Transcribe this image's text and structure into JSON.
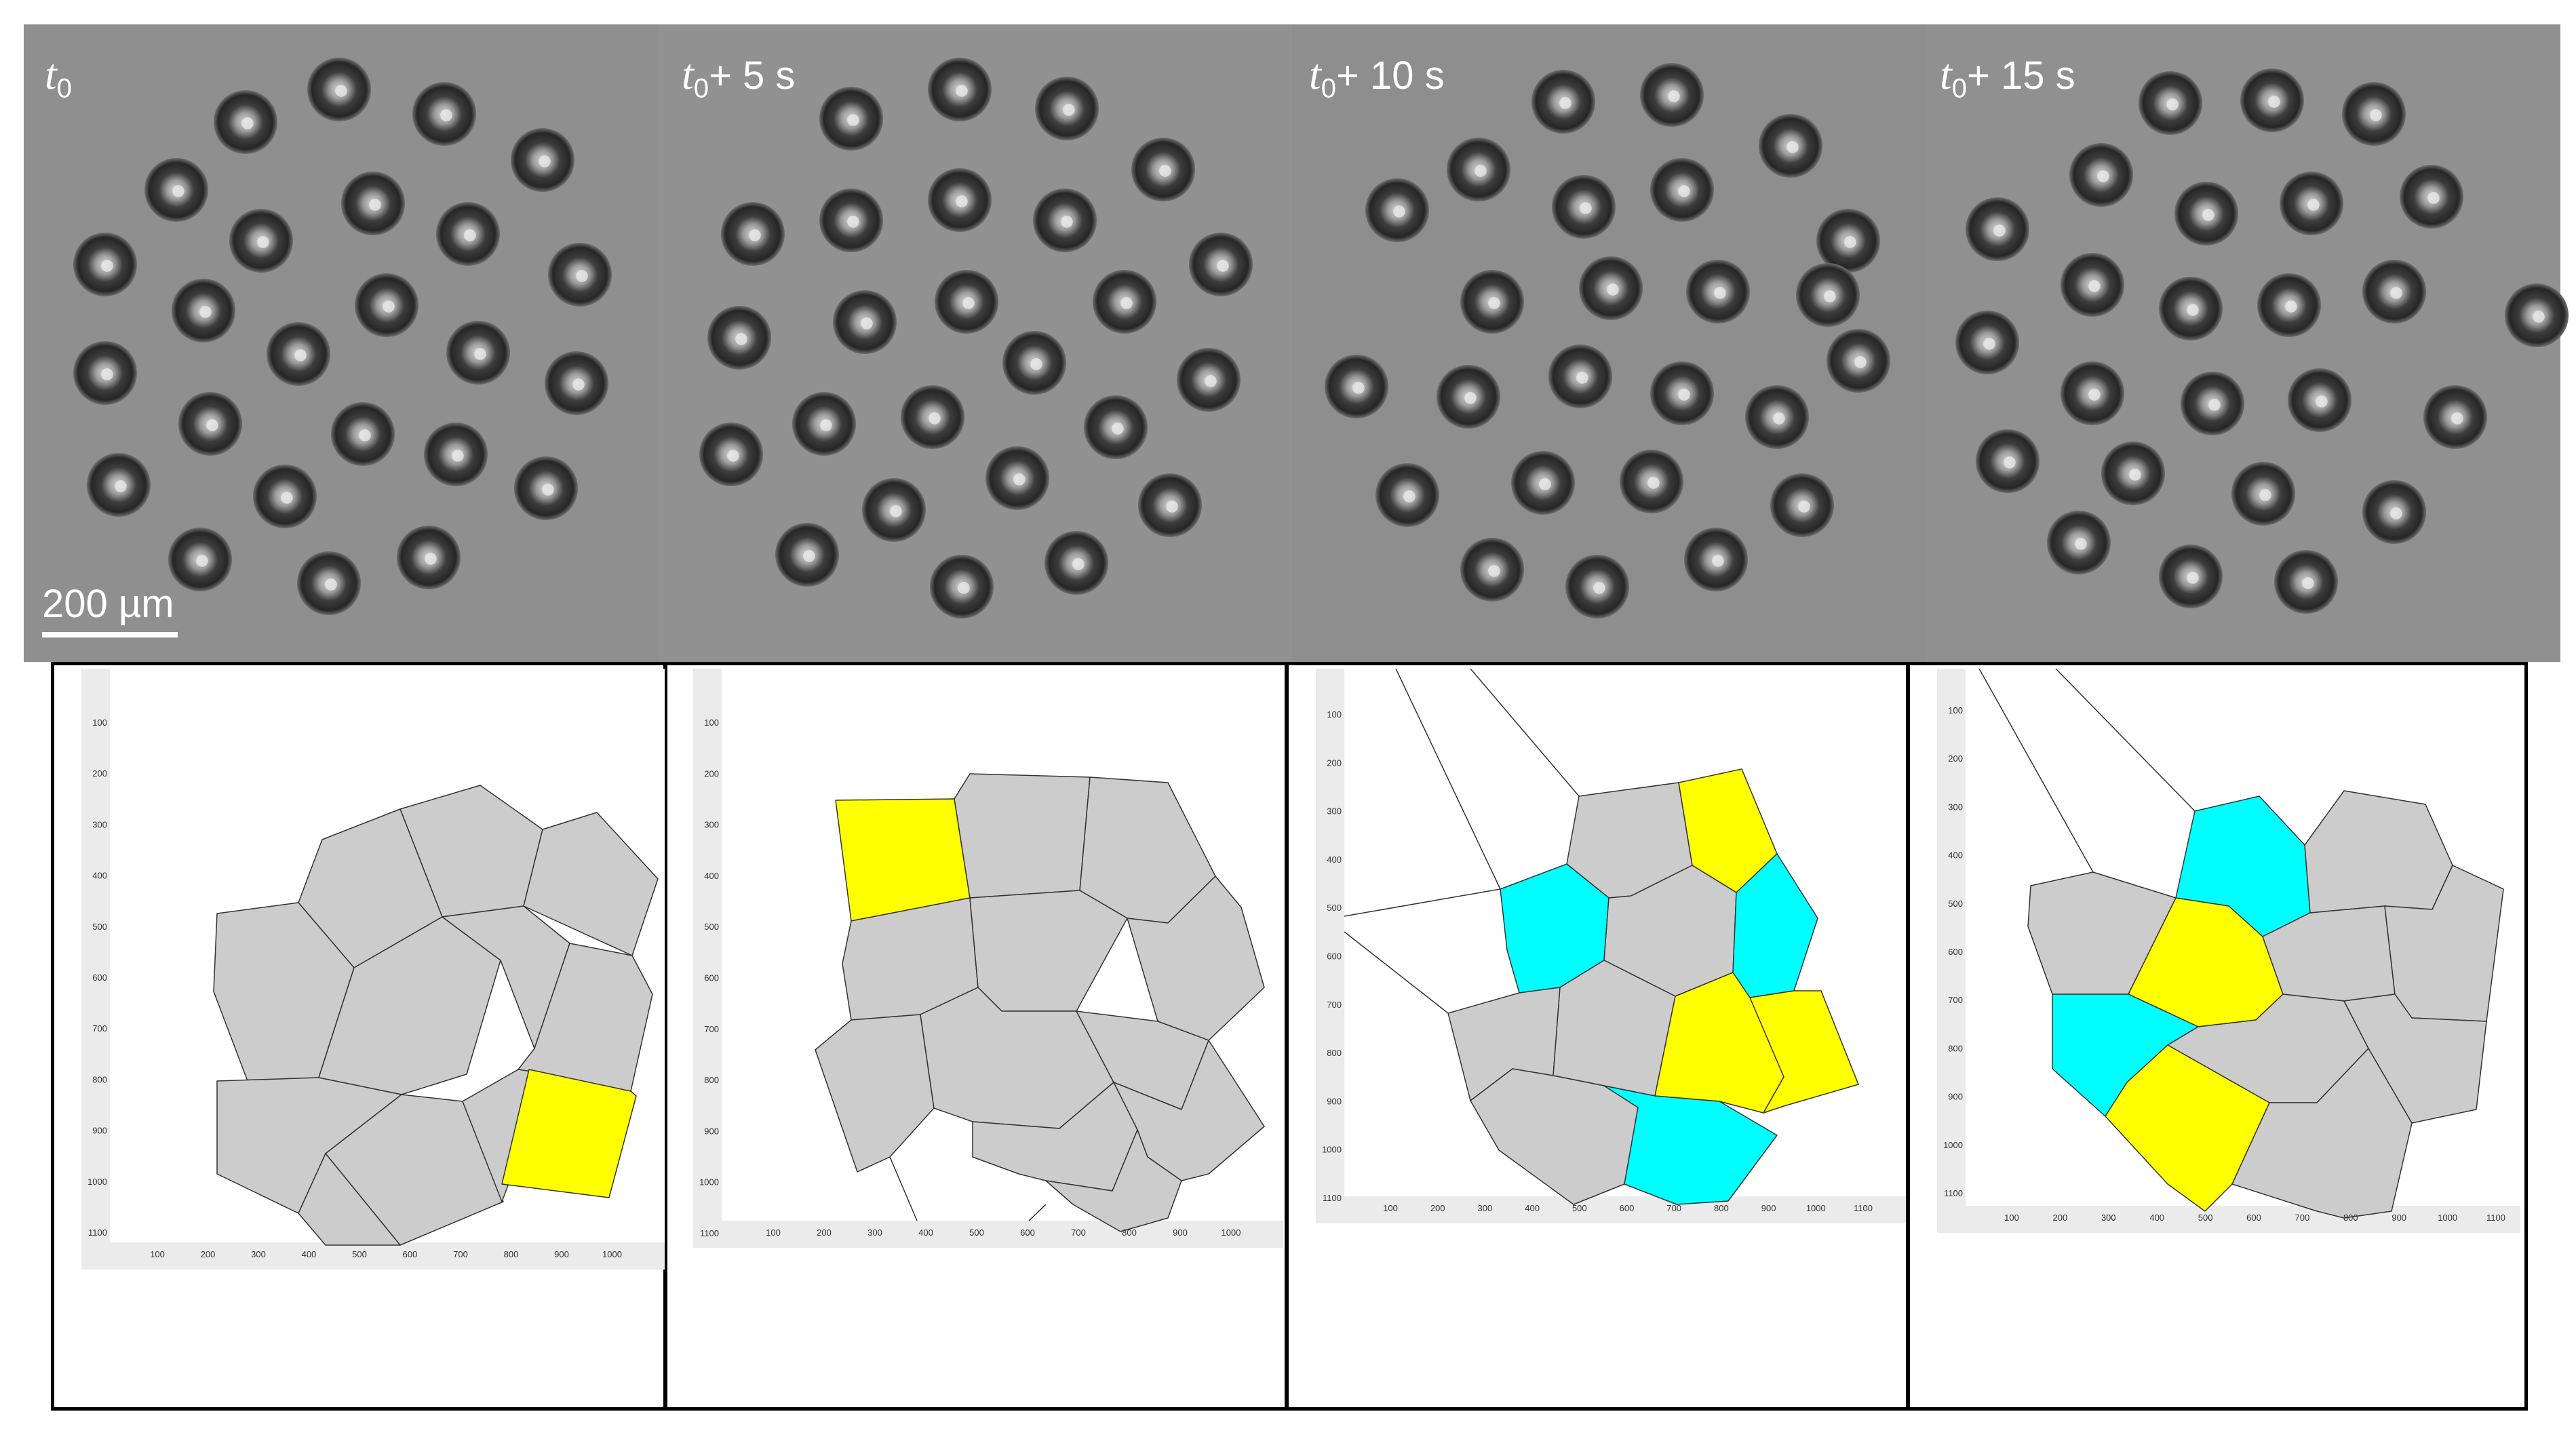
{
  "figure": {
    "time_labels": [
      {
        "var": "t",
        "sub": "0",
        "suffix": ""
      },
      {
        "var": "t",
        "sub": "0",
        "suffix": "+ 5 s"
      },
      {
        "var": "t",
        "sub": "0",
        "suffix": "+ 10 s"
      },
      {
        "var": "t",
        "sub": "0",
        "suffix": "+ 15 s"
      }
    ],
    "scale_bar_label": "200 µm",
    "axis_ticks_y": [
      "100",
      "200",
      "300",
      "400",
      "500",
      "600",
      "700",
      "800",
      "900",
      "1000",
      "1100"
    ],
    "plot_ticks_x": [
      [
        "100",
        "200",
        "300",
        "400",
        "500",
        "600",
        "700",
        "800",
        "900",
        "1000"
      ],
      [
        "100",
        "200",
        "300",
        "400",
        "500",
        "600",
        "700",
        "800",
        "900",
        "1000"
      ],
      [
        "100",
        "200",
        "300",
        "400",
        "500",
        "600",
        "700",
        "800",
        "900",
        "1000",
        "1100"
      ],
      [
        "100",
        "200",
        "300",
        "400",
        "500",
        "600",
        "700",
        "800",
        "900",
        "1000",
        "1100"
      ]
    ],
    "colors": {
      "photo_bg": "#8f8f8f",
      "cell_gray": "#cccccc",
      "yellow": "#ffff00",
      "cyan": "#00ffff",
      "axis_bg": "#ebebeb"
    }
  }
}
